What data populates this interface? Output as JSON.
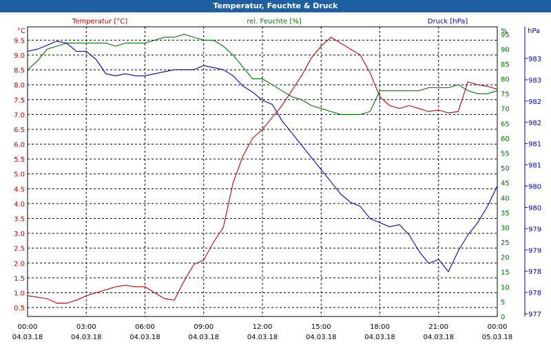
{
  "window": {
    "title": "Temperatur, Feuchte & Druck"
  },
  "colors": {
    "temperature": "#c00000",
    "humidity": "#007000",
    "pressure": "#0000b0",
    "titlebar": "#1e5fa0"
  },
  "chart_data": {
    "type": "line",
    "title": "Temperatur, Feuchte & Druck",
    "grid": true,
    "x_ticks": [
      {
        "time": "00:00",
        "date": "04.03.18"
      },
      {
        "time": "03:00",
        "date": "04.03.18"
      },
      {
        "time": "06:00",
        "date": "04.03.18"
      },
      {
        "time": "09:00",
        "date": "04.03.18"
      },
      {
        "time": "12:00",
        "date": "04.03.18"
      },
      {
        "time": "15:00",
        "date": "04.03.18"
      },
      {
        "time": "18:00",
        "date": "04.03.18"
      },
      {
        "time": "21:00",
        "date": "04.03.18"
      },
      {
        "time": "00:00",
        "date": "05.03.18"
      }
    ],
    "axes": {
      "temperature": {
        "label": "Temperatur [°C]",
        "unit": "°C",
        "ylim": [
          0.2,
          9.95
        ],
        "ticks": [
          "0.5",
          "1.0",
          "1.5",
          "2.0",
          "2.5",
          "3.0",
          "3.5",
          "4.0",
          "4.5",
          "5.0",
          "5.5",
          "6.0",
          "6.5",
          "7.0",
          "7.5",
          "8.0",
          "8.5",
          "9.0",
          "9.5"
        ]
      },
      "humidity": {
        "label": "rel. Feuchte [%]",
        "unit": "%",
        "ylim": [
          0,
          97.5
        ],
        "ticks": [
          "0",
          "5",
          "10",
          "15",
          "20",
          "25",
          "30",
          "35",
          "40",
          "45",
          "50",
          "55",
          "60",
          "65",
          "70",
          "75",
          "80",
          "85",
          "90",
          "95"
        ]
      },
      "pressure": {
        "label": "Druck [hPa]",
        "unit": "hPa",
        "ylim": [
          976.8,
          983.9
        ],
        "ticks": [
          "977",
          "978",
          "978",
          "979",
          "979",
          "980",
          "980",
          "981",
          "981",
          "982",
          "982",
          "983",
          "983"
        ]
      }
    },
    "series": [
      {
        "name": "Temperatur [°C]",
        "axis": "temperature",
        "x": [
          0,
          0.5,
          1,
          1.5,
          2,
          2.5,
          3,
          3.5,
          4,
          4.5,
          5,
          5.5,
          6,
          6.5,
          7,
          7.5,
          8,
          8.5,
          9,
          9.5,
          10,
          10.5,
          11,
          11.5,
          12,
          12.5,
          13,
          13.5,
          14,
          14.5,
          15,
          15.5,
          16,
          16.5,
          17,
          17.5,
          18,
          18.5,
          19,
          19.5,
          20,
          20.5,
          21,
          21.5,
          22,
          22.5,
          23,
          23.5,
          24
        ],
        "y": [
          0.9,
          0.85,
          0.8,
          0.65,
          0.65,
          0.75,
          0.9,
          1.0,
          1.1,
          1.2,
          1.25,
          1.2,
          1.2,
          1.0,
          0.8,
          0.75,
          1.4,
          1.95,
          2.1,
          2.7,
          3.2,
          4.7,
          5.6,
          6.2,
          6.5,
          6.9,
          7.3,
          7.8,
          8.3,
          8.9,
          9.3,
          9.6,
          9.4,
          9.2,
          9.0,
          8.4,
          7.6,
          7.3,
          7.2,
          7.3,
          7.2,
          7.1,
          7.15,
          7.05,
          7.1,
          8.1,
          8.0,
          7.95,
          7.85
        ]
      },
      {
        "name": "rel. Feuchte [%]",
        "axis": "humidity",
        "x": [
          0,
          0.5,
          1,
          1.5,
          2,
          2.5,
          3,
          3.5,
          4,
          4.5,
          5,
          5.5,
          6,
          6.5,
          7,
          7.5,
          8,
          8.5,
          9,
          9.5,
          10,
          10.5,
          11,
          11.5,
          12,
          12.5,
          13,
          13.5,
          14,
          14.5,
          15,
          15.5,
          16,
          16.5,
          17,
          17.5,
          18,
          18.5,
          19,
          19.5,
          20,
          20.5,
          21,
          21.5,
          22,
          22.5,
          23,
          23.5,
          24
        ],
        "y": [
          83,
          86,
          90,
          91,
          92,
          92,
          92,
          92,
          92,
          91,
          92,
          92,
          92,
          93,
          94,
          94,
          95,
          94,
          93,
          93,
          91,
          88,
          84,
          80,
          80,
          78,
          76,
          74,
          73,
          71,
          70,
          69,
          68,
          68,
          68,
          69,
          76,
          76,
          76,
          76,
          76,
          77,
          77,
          77,
          78,
          76,
          75,
          75,
          76
        ]
      },
      {
        "name": "Druck [hPa]",
        "axis": "pressure",
        "x": [
          0,
          0.5,
          1,
          1.5,
          2,
          2.5,
          3,
          3.5,
          4,
          4.5,
          5,
          5.5,
          6,
          6.5,
          7,
          7.5,
          8,
          8.5,
          9,
          9.5,
          10,
          10.5,
          11,
          11.5,
          12,
          12.5,
          13,
          13.5,
          14,
          14.5,
          15,
          15.5,
          16,
          16.5,
          17,
          17.5,
          18,
          18.5,
          19,
          19.5,
          20,
          20.5,
          21,
          21.5,
          22,
          22.5,
          23,
          23.5,
          24
        ],
        "y": [
          983.3,
          983.35,
          983.45,
          983.55,
          983.5,
          983.3,
          983.3,
          983.1,
          982.75,
          982.7,
          982.75,
          982.7,
          982.7,
          982.75,
          982.8,
          982.85,
          982.85,
          982.85,
          982.95,
          982.9,
          982.85,
          982.7,
          982.45,
          982.3,
          982.1,
          982.0,
          981.6,
          981.3,
          981.0,
          980.7,
          980.4,
          980.1,
          979.8,
          979.6,
          979.5,
          979.2,
          979.1,
          979.0,
          979.05,
          978.8,
          978.4,
          978.1,
          978.2,
          977.9,
          978.4,
          978.8,
          979.1,
          979.5,
          980.0
        ]
      }
    ]
  }
}
